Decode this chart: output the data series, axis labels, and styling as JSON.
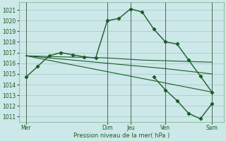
{
  "background_color": "#cce8e8",
  "grid_color": "#aacccc",
  "line_color": "#1a5c28",
  "xlabel": "Pression niveau de la mer( hPa )",
  "ylim": [
    1010.5,
    1021.7
  ],
  "yticks": [
    1011,
    1012,
    1013,
    1014,
    1015,
    1016,
    1017,
    1018,
    1019,
    1020,
    1021
  ],
  "day_labels": [
    "Mer",
    "Dim",
    "Jeu",
    "Ven",
    "Sam"
  ],
  "day_positions": [
    0,
    3.5,
    4.5,
    6.0,
    8.0
  ],
  "xlim": [
    -0.3,
    8.5
  ],
  "vline_positions": [
    0,
    3.5,
    4.5,
    6.0,
    8.0
  ],
  "series1_x": [
    0,
    0.5,
    1.0,
    1.5,
    2.0,
    2.5,
    3.0,
    3.5,
    4.0,
    4.5,
    5.0,
    5.5,
    6.0,
    6.5,
    7.0,
    7.5,
    8.0
  ],
  "series1_y": [
    1014.7,
    1015.7,
    1016.7,
    1017.0,
    1016.8,
    1016.6,
    1016.5,
    1020.0,
    1020.2,
    1021.1,
    1020.8,
    1019.2,
    1018.0,
    1017.8,
    1016.3,
    1014.8,
    1013.3
  ],
  "series2_x": [
    0,
    1.5,
    3.5,
    5.0,
    6.5,
    8.0
  ],
  "series2_y": [
    1016.7,
    1016.6,
    1016.5,
    1016.3,
    1016.2,
    1016.1
  ],
  "series3_x": [
    0,
    2.0,
    4.0,
    6.0,
    8.0
  ],
  "series3_y": [
    1016.7,
    1016.3,
    1015.9,
    1015.5,
    1015.0
  ],
  "series4_x": [
    0,
    8.0
  ],
  "series4_y": [
    1016.7,
    1013.3
  ],
  "series5_x": [
    5.5,
    6.0,
    6.5,
    7.0,
    7.5,
    8.0
  ],
  "series5_y": [
    1014.7,
    1013.5,
    1012.5,
    1011.3,
    1010.8,
    1012.2
  ]
}
